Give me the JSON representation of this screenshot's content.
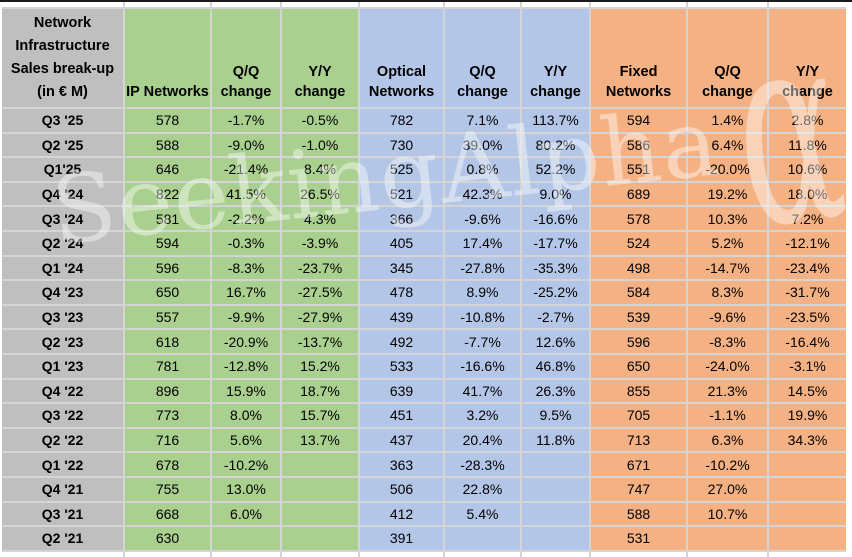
{
  "chart_data": {
    "type": "table",
    "title": "Network Infrastructure Sales break-up (in € M)",
    "title_lines": [
      "Network",
      "Infrastructure",
      "Sales break-up",
      "(in € M)"
    ],
    "headers": [
      "IP Networks",
      "Q/Q change",
      "Y/Y change",
      "Optical Networks",
      "Q/Q change",
      "Y/Y change",
      "Fixed Networks",
      "Q/Q change",
      "Y/Y change"
    ],
    "column_groups": [
      {
        "label": "IP Networks",
        "color": "#a9d08e"
      },
      {
        "label": "Optical Networks",
        "color": "#b4c6e7"
      },
      {
        "label": "Fixed Networks",
        "color": "#f4b183"
      }
    ],
    "rows": [
      {
        "label": "Q3 '25",
        "values": [
          "578",
          "-1.7%",
          "-0.5%",
          "782",
          "7.1%",
          "113.7%",
          "594",
          "1.4%",
          "2.8%"
        ]
      },
      {
        "label": "Q2 '25",
        "values": [
          "588",
          "-9.0%",
          "-1.0%",
          "730",
          "39.0%",
          "80.2%",
          "586",
          "6.4%",
          "11.8%"
        ]
      },
      {
        "label": "Q1'25",
        "values": [
          "646",
          "-21.4%",
          "8.4%",
          "525",
          "0.8%",
          "52.2%",
          "551",
          "-20.0%",
          "10.6%"
        ]
      },
      {
        "label": "Q4 '24",
        "values": [
          "822",
          "41.5%",
          "26.5%",
          "521",
          "42.3%",
          "9.0%",
          "689",
          "19.2%",
          "18.0%"
        ]
      },
      {
        "label": "Q3 '24",
        "values": [
          "581",
          "-2.2%",
          "4.3%",
          "366",
          "-9.6%",
          "-16.6%",
          "578",
          "10.3%",
          "7.2%"
        ]
      },
      {
        "label": "Q2 '24",
        "values": [
          "594",
          "-0.3%",
          "-3.9%",
          "405",
          "17.4%",
          "-17.7%",
          "524",
          "5.2%",
          "-12.1%"
        ]
      },
      {
        "label": "Q1 '24",
        "values": [
          "596",
          "-8.3%",
          "-23.7%",
          "345",
          "-27.8%",
          "-35.3%",
          "498",
          "-14.7%",
          "-23.4%"
        ]
      },
      {
        "label": "Q4 '23",
        "values": [
          "650",
          "16.7%",
          "-27.5%",
          "478",
          "8.9%",
          "-25.2%",
          "584",
          "8.3%",
          "-31.7%"
        ]
      },
      {
        "label": "Q3 '23",
        "values": [
          "557",
          "-9.9%",
          "-27.9%",
          "439",
          "-10.8%",
          "-2.7%",
          "539",
          "-9.6%",
          "-23.5%"
        ]
      },
      {
        "label": "Q2 '23",
        "values": [
          "618",
          "-20.9%",
          "-13.7%",
          "492",
          "-7.7%",
          "12.6%",
          "596",
          "-8.3%",
          "-16.4%"
        ]
      },
      {
        "label": "Q1 '23",
        "values": [
          "781",
          "-12.8%",
          "15.2%",
          "533",
          "-16.6%",
          "46.8%",
          "650",
          "-24.0%",
          "-3.1%"
        ]
      },
      {
        "label": "Q4 '22",
        "values": [
          "896",
          "15.9%",
          "18.7%",
          "639",
          "41.7%",
          "26.3%",
          "855",
          "21.3%",
          "14.5%"
        ]
      },
      {
        "label": "Q3 '22",
        "values": [
          "773",
          "8.0%",
          "15.7%",
          "451",
          "3.2%",
          "9.5%",
          "705",
          "-1.1%",
          "19.9%"
        ]
      },
      {
        "label": "Q2 '22",
        "values": [
          "716",
          "5.6%",
          "13.7%",
          "437",
          "20.4%",
          "11.8%",
          "713",
          "6.3%",
          "34.3%"
        ]
      },
      {
        "label": "Q1 '22",
        "values": [
          "678",
          "-10.2%",
          "",
          "363",
          "-28.3%",
          "",
          "671",
          "-10.2%",
          ""
        ]
      },
      {
        "label": "Q4 '21",
        "values": [
          "755",
          "13.0%",
          "",
          "506",
          "22.8%",
          "",
          "747",
          "27.0%",
          ""
        ]
      },
      {
        "label": "Q3 '21",
        "values": [
          "668",
          "6.0%",
          "",
          "412",
          "5.4%",
          "",
          "588",
          "10.7%",
          ""
        ]
      },
      {
        "label": "Q2 '21",
        "values": [
          "630",
          "",
          "",
          "391",
          "",
          "",
          "531",
          "",
          ""
        ]
      }
    ]
  },
  "colors": {
    "label_bg": "#bfbfbf",
    "green": "#a9d08e",
    "blue": "#b4c6e7",
    "orange": "#f4b183",
    "gridline": "#d5d5d5"
  },
  "watermark": {
    "text": "SeekingAlpha",
    "glyph": "α"
  }
}
